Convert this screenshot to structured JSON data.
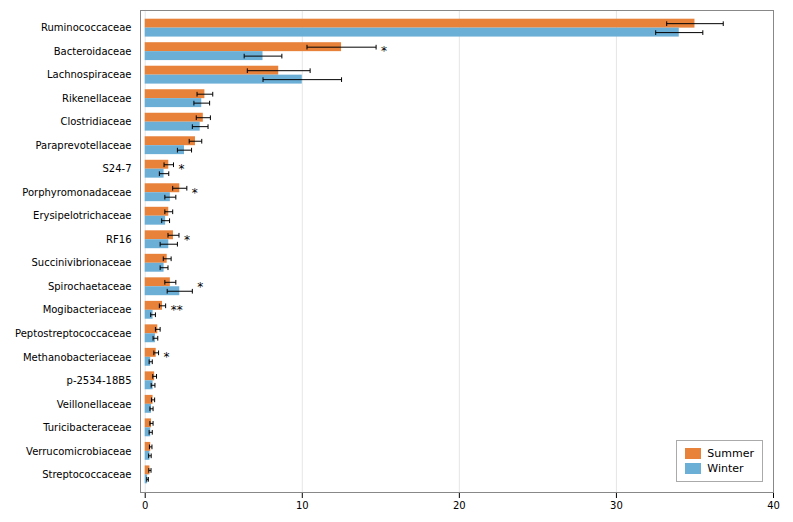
{
  "chart_data": {
    "type": "bar",
    "orientation": "horizontal",
    "categories": [
      "Ruminococcaceae",
      "Bacteroidaceae",
      "Lachnospiraceae",
      "Rikenellaceae",
      "Clostridiaceae",
      "Paraprevotellaceae",
      "S24-7",
      "Porphyromonadaceae",
      "Erysipelotrichaceae",
      "RF16",
      "Succinivibrionaceae",
      "Spirochaetaceae",
      "Mogibacteriaceae",
      "Peptostreptococcaceae",
      "Methanobacteriaceae",
      "p-2534-18B5",
      "Veillonellaceae",
      "Turicibacteraceae",
      "Verrucomicrobiaceae",
      "Streptococcaceae"
    ],
    "series": [
      {
        "name": "Summer",
        "color": "#E8823A",
        "values": [
          35.0,
          12.5,
          8.5,
          3.8,
          3.7,
          3.2,
          1.5,
          2.2,
          1.5,
          1.8,
          1.4,
          1.6,
          1.1,
          0.8,
          0.7,
          0.6,
          0.5,
          0.4,
          0.35,
          0.3
        ],
        "errors": [
          1.8,
          2.2,
          2.0,
          0.5,
          0.45,
          0.4,
          0.3,
          0.45,
          0.25,
          0.35,
          0.25,
          0.35,
          0.2,
          0.15,
          0.15,
          0.12,
          0.1,
          0.1,
          0.08,
          0.07
        ]
      },
      {
        "name": "Winter",
        "color": "#6BAED6",
        "values": [
          34.0,
          7.5,
          10.0,
          3.6,
          3.5,
          2.5,
          1.2,
          1.6,
          1.3,
          1.5,
          1.2,
          2.2,
          0.5,
          0.65,
          0.35,
          0.5,
          0.4,
          0.35,
          0.3,
          0.15
        ],
        "errors": [
          1.5,
          1.2,
          2.5,
          0.5,
          0.5,
          0.45,
          0.3,
          0.35,
          0.25,
          0.55,
          0.25,
          0.8,
          0.15,
          0.15,
          0.1,
          0.12,
          0.1,
          0.1,
          0.08,
          0.05
        ]
      }
    ],
    "annotations": [
      {
        "category": "Bacteroidaceae",
        "text": "*"
      },
      {
        "category": "S24-7",
        "text": "*"
      },
      {
        "category": "Porphyromonadaceae",
        "text": "*"
      },
      {
        "category": "RF16",
        "text": "*"
      },
      {
        "category": "Spirochaetaceae",
        "text": "*"
      },
      {
        "category": "Mogibacteriaceae",
        "text": "**"
      },
      {
        "category": "Methanobacteriaceae",
        "text": "*"
      }
    ],
    "xlim": [
      -0.3,
      40
    ],
    "xticks": [
      0,
      10,
      20,
      30,
      40
    ],
    "grid": true,
    "legend": "lower right"
  }
}
